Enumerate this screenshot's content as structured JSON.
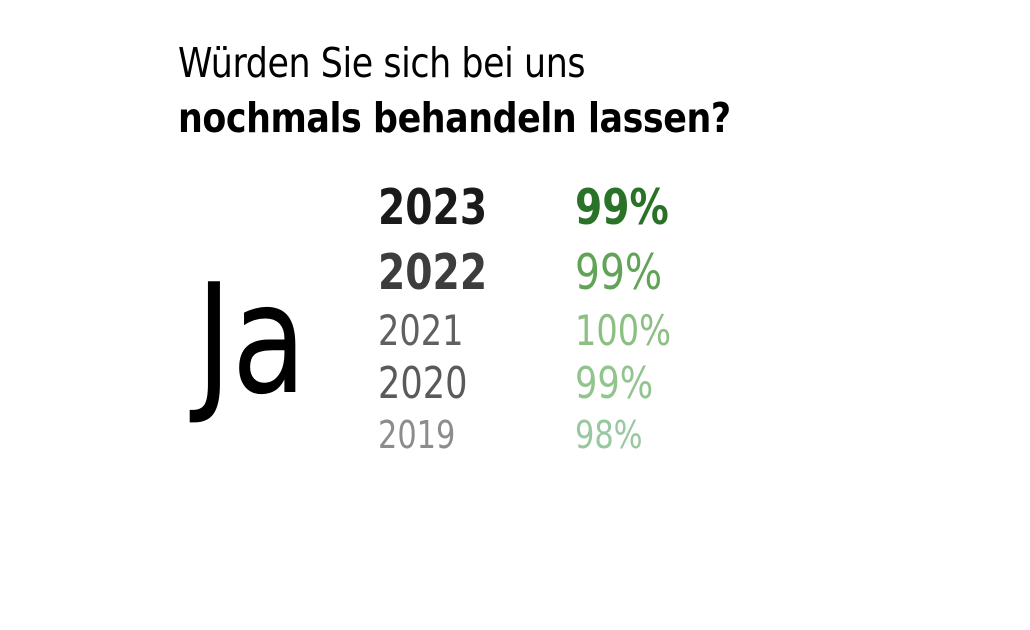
{
  "page": {
    "background_color": "#ffffff",
    "text_color": "#000000"
  },
  "title": {
    "line1": "Würden Sie sich bei uns",
    "line2": "nochmals behandeln lassen?"
  },
  "answer": {
    "label": "Ja"
  },
  "stats": {
    "rows": [
      {
        "year": "2023",
        "value": "99%",
        "year_color": "#1a1a1a",
        "value_color": "#2a7228"
      },
      {
        "year": "2022",
        "value": "99%",
        "year_color": "#3d3d3d",
        "value_color": "#62a457"
      },
      {
        "year": "2021",
        "value": "100%",
        "year_color": "#606060",
        "value_color": "#8cc083"
      },
      {
        "year": "2020",
        "value": "99%",
        "year_color": "#5a5a5a",
        "value_color": "#92c58e"
      },
      {
        "year": "2019",
        "value": "98%",
        "year_color": "#8c8c8c",
        "value_color": "#98c8a0"
      }
    ]
  },
  "chart_data": {
    "type": "table",
    "title": "Würden Sie sich bei uns nochmals behandeln lassen?",
    "answer_label": "Ja",
    "categories": [
      "2023",
      "2022",
      "2021",
      "2020",
      "2019"
    ],
    "values": [
      99,
      99,
      100,
      99,
      98
    ],
    "unit": "%",
    "layout_hints": {
      "emphasis": "most recent year largest and darkest; older years progressively smaller and lighter",
      "year_colors": [
        "#1a1a1a",
        "#3d3d3d",
        "#606060",
        "#5a5a5a",
        "#8c8c8c"
      ],
      "value_colors": [
        "#2a7228",
        "#62a457",
        "#8cc083",
        "#92c58e",
        "#98c8a0"
      ],
      "background": "#ffffff"
    }
  }
}
